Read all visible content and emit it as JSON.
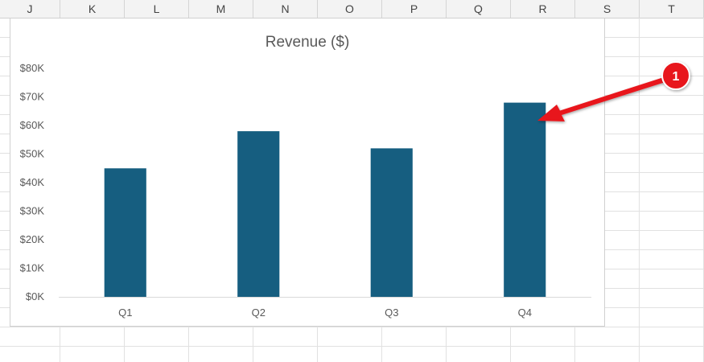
{
  "spreadsheet": {
    "columns": [
      "J",
      "K",
      "L",
      "M",
      "N",
      "O",
      "P",
      "Q",
      "R",
      "S",
      "T"
    ]
  },
  "chart_data": {
    "type": "bar",
    "title": "Revenue ($)",
    "categories": [
      "Q1",
      "Q2",
      "Q3",
      "Q4"
    ],
    "values": [
      45000,
      58000,
      52000,
      68000
    ],
    "ylim": [
      0,
      80000
    ],
    "yticks": [
      0,
      10000,
      20000,
      30000,
      40000,
      50000,
      60000,
      70000,
      80000
    ],
    "ytick_labels": [
      "$0K",
      "$10K",
      "$20K",
      "$30K",
      "$40K",
      "$50K",
      "$60K",
      "$70K",
      "$80K"
    ],
    "xlabel": "",
    "ylabel": "",
    "grid": false,
    "bar_color": "#165e80"
  },
  "annotation": {
    "number": "1",
    "target": "Q4",
    "color": "#e8171c"
  }
}
